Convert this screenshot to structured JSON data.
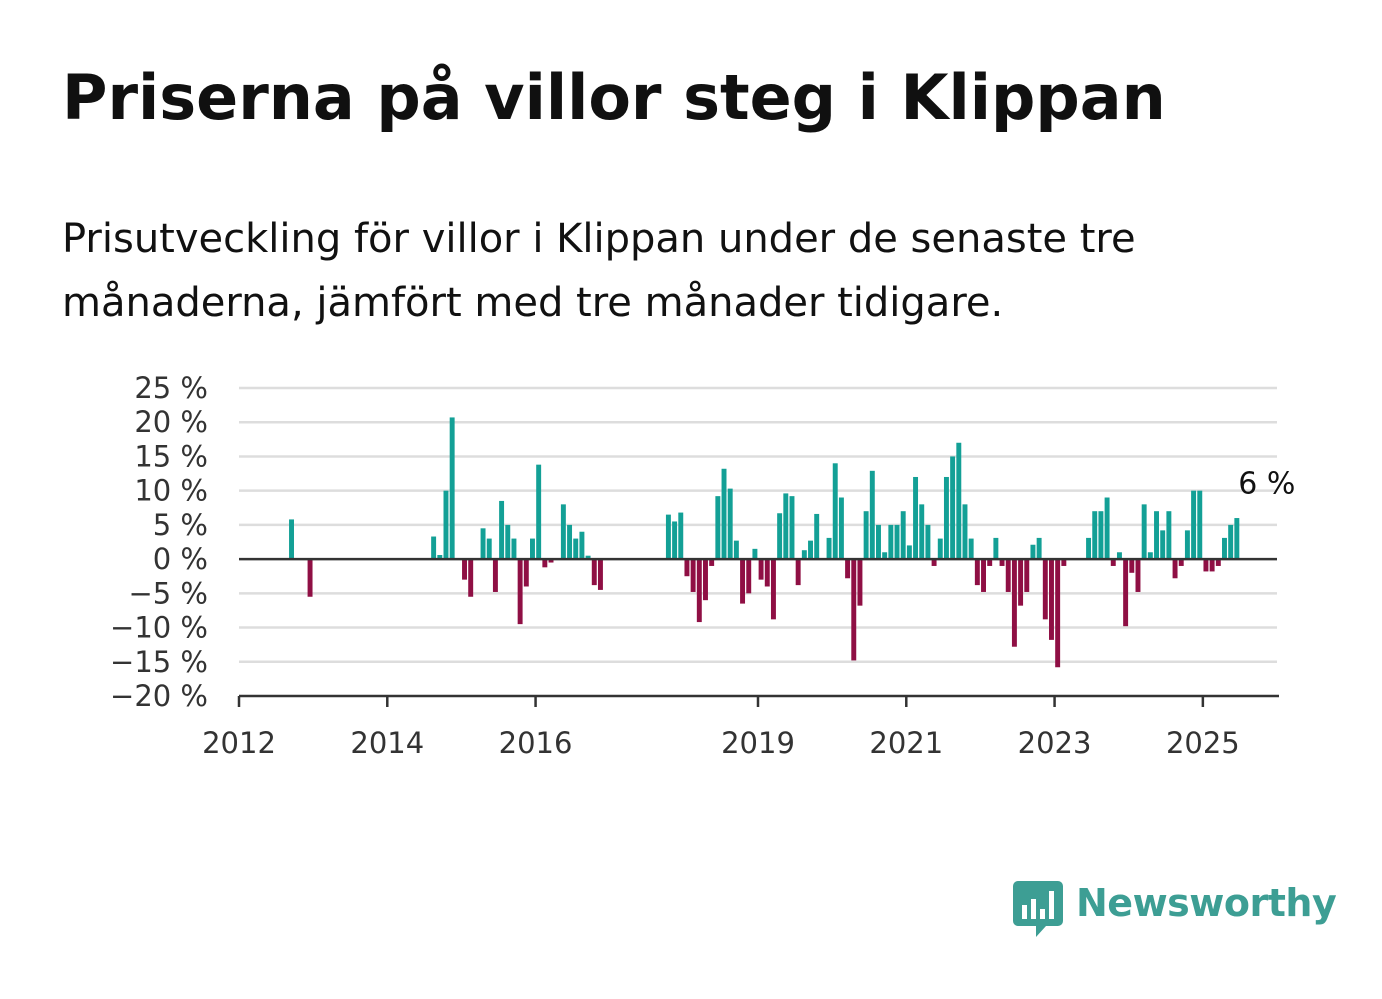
{
  "title": "Priserna på villor steg i Klippan",
  "subtitle": "Prisutveckling för villor i Klippan under de senaste tre månaderna, jämfört med tre månader tidigare.",
  "brand": {
    "name": "Newsworthy",
    "color": "#3d9e94"
  },
  "colors": {
    "positive": "#13a096",
    "negative": "#8f0f44",
    "grid": "#dddddd",
    "zero_line": "#333333",
    "axis": "#333333"
  },
  "chart_data": {
    "type": "bar",
    "title": "",
    "xlabel": "",
    "ylabel": "",
    "unit": "%",
    "ylim": [
      -20,
      25
    ],
    "y_ticks": [
      25,
      20,
      15,
      10,
      5,
      0,
      -5,
      -10,
      -15,
      -20
    ],
    "y_tick_labels": [
      "25 %",
      "20 %",
      "15 %",
      "10 %",
      "5 %",
      "0 %",
      "−5 %",
      "−10 %",
      "−15 %",
      "−20 %"
    ],
    "xlim": [
      "2012-01",
      "2026-01"
    ],
    "x_ticks": [
      "2012-01",
      "2014-01",
      "2016-01",
      "2019-01",
      "2021-01",
      "2023-01",
      "2025-01"
    ],
    "x_tick_labels": [
      "2012",
      "2014",
      "2016",
      "2019",
      "2021",
      "2023",
      "2025"
    ],
    "grid": true,
    "last_value_label": "6 %",
    "x": [
      "2012-09",
      "2012-12",
      "2014-08",
      "2014-09",
      "2014-10",
      "2014-11",
      "2014-12",
      "2015-01",
      "2015-02",
      "2015-03",
      "2015-04",
      "2015-05",
      "2015-06",
      "2015-07",
      "2015-08",
      "2015-09",
      "2015-10",
      "2015-11",
      "2015-12",
      "2016-01",
      "2016-02",
      "2016-03",
      "2016-04",
      "2016-05",
      "2016-06",
      "2016-07",
      "2016-08",
      "2016-09",
      "2016-10",
      "2016-11",
      "2017-10",
      "2017-11",
      "2017-12",
      "2018-01",
      "2018-02",
      "2018-03",
      "2018-04",
      "2018-05",
      "2018-06",
      "2018-07",
      "2018-08",
      "2018-09",
      "2018-10",
      "2018-11",
      "2018-12",
      "2019-01",
      "2019-02",
      "2019-03",
      "2019-04",
      "2019-05",
      "2019-06",
      "2019-07",
      "2019-08",
      "2019-09",
      "2019-10",
      "2019-11",
      "2019-12",
      "2020-01",
      "2020-02",
      "2020-03",
      "2020-04",
      "2020-05",
      "2020-06",
      "2020-07",
      "2020-08",
      "2020-09",
      "2020-10",
      "2020-11",
      "2020-12",
      "2021-01",
      "2021-02",
      "2021-03",
      "2021-04",
      "2021-05",
      "2021-06",
      "2021-07",
      "2021-08",
      "2021-09",
      "2021-10",
      "2021-11",
      "2021-12",
      "2022-01",
      "2022-02",
      "2022-03",
      "2022-04",
      "2022-05",
      "2022-06",
      "2022-07",
      "2022-08",
      "2022-09",
      "2022-10",
      "2022-11",
      "2022-12",
      "2023-01",
      "2023-02",
      "2023-03",
      "2023-04",
      "2023-05",
      "2023-06",
      "2023-07",
      "2023-08",
      "2023-09",
      "2023-10",
      "2023-11",
      "2023-12",
      "2024-01",
      "2024-02",
      "2024-03",
      "2024-04",
      "2024-05",
      "2024-06",
      "2024-07",
      "2024-08",
      "2024-09",
      "2024-10",
      "2024-11",
      "2024-12",
      "2025-01",
      "2025-02",
      "2025-03",
      "2025-04",
      "2025-05",
      "2025-06"
    ],
    "values": [
      5.8,
      -5.5,
      3.3,
      0.6,
      10.0,
      20.7,
      0,
      -3.0,
      -5.5,
      0,
      4.5,
      3.0,
      -4.8,
      8.5,
      5.0,
      3.0,
      -9.5,
      -4.0,
      3.0,
      13.8,
      -1.2,
      -0.5,
      0,
      8.0,
      5.0,
      3.0,
      4.0,
      0.5,
      -3.8,
      -4.5,
      6.5,
      5.5,
      6.8,
      -2.5,
      -4.8,
      -9.2,
      -6.0,
      -1.0,
      9.2,
      13.2,
      10.3,
      2.7,
      -6.5,
      -5.0,
      1.5,
      -3.0,
      -4.0,
      -8.8,
      6.7,
      9.6,
      9.2,
      -3.8,
      1.3,
      2.7,
      6.6,
      0.0,
      3.1,
      14.0,
      9.0,
      -2.8,
      -14.8,
      -6.8,
      7.0,
      12.9,
      5.0,
      1.0,
      5.0,
      5.0,
      7.0,
      2.0,
      12.0,
      8.0,
      5.0,
      -1.0,
      3.0,
      12.0,
      15.0,
      17.0,
      8.0,
      3.0,
      -3.8,
      -4.8,
      -1.0,
      3.1,
      -1.0,
      -4.8,
      -12.8,
      -6.8,
      -4.8,
      2.1,
      3.1,
      -8.8,
      -11.8,
      -15.8,
      -1.0,
      0,
      0,
      0,
      3.1,
      7.0,
      7.0,
      9.0,
      -1.0,
      1.0,
      -9.8,
      -2.0,
      -4.8,
      8.0,
      1.0,
      7.0,
      4.2,
      7.0,
      -2.8,
      -1.0,
      4.2,
      10.0,
      10.0,
      -1.8,
      -1.8,
      -1.0,
      3.1,
      5.0,
      6.0
    ]
  }
}
